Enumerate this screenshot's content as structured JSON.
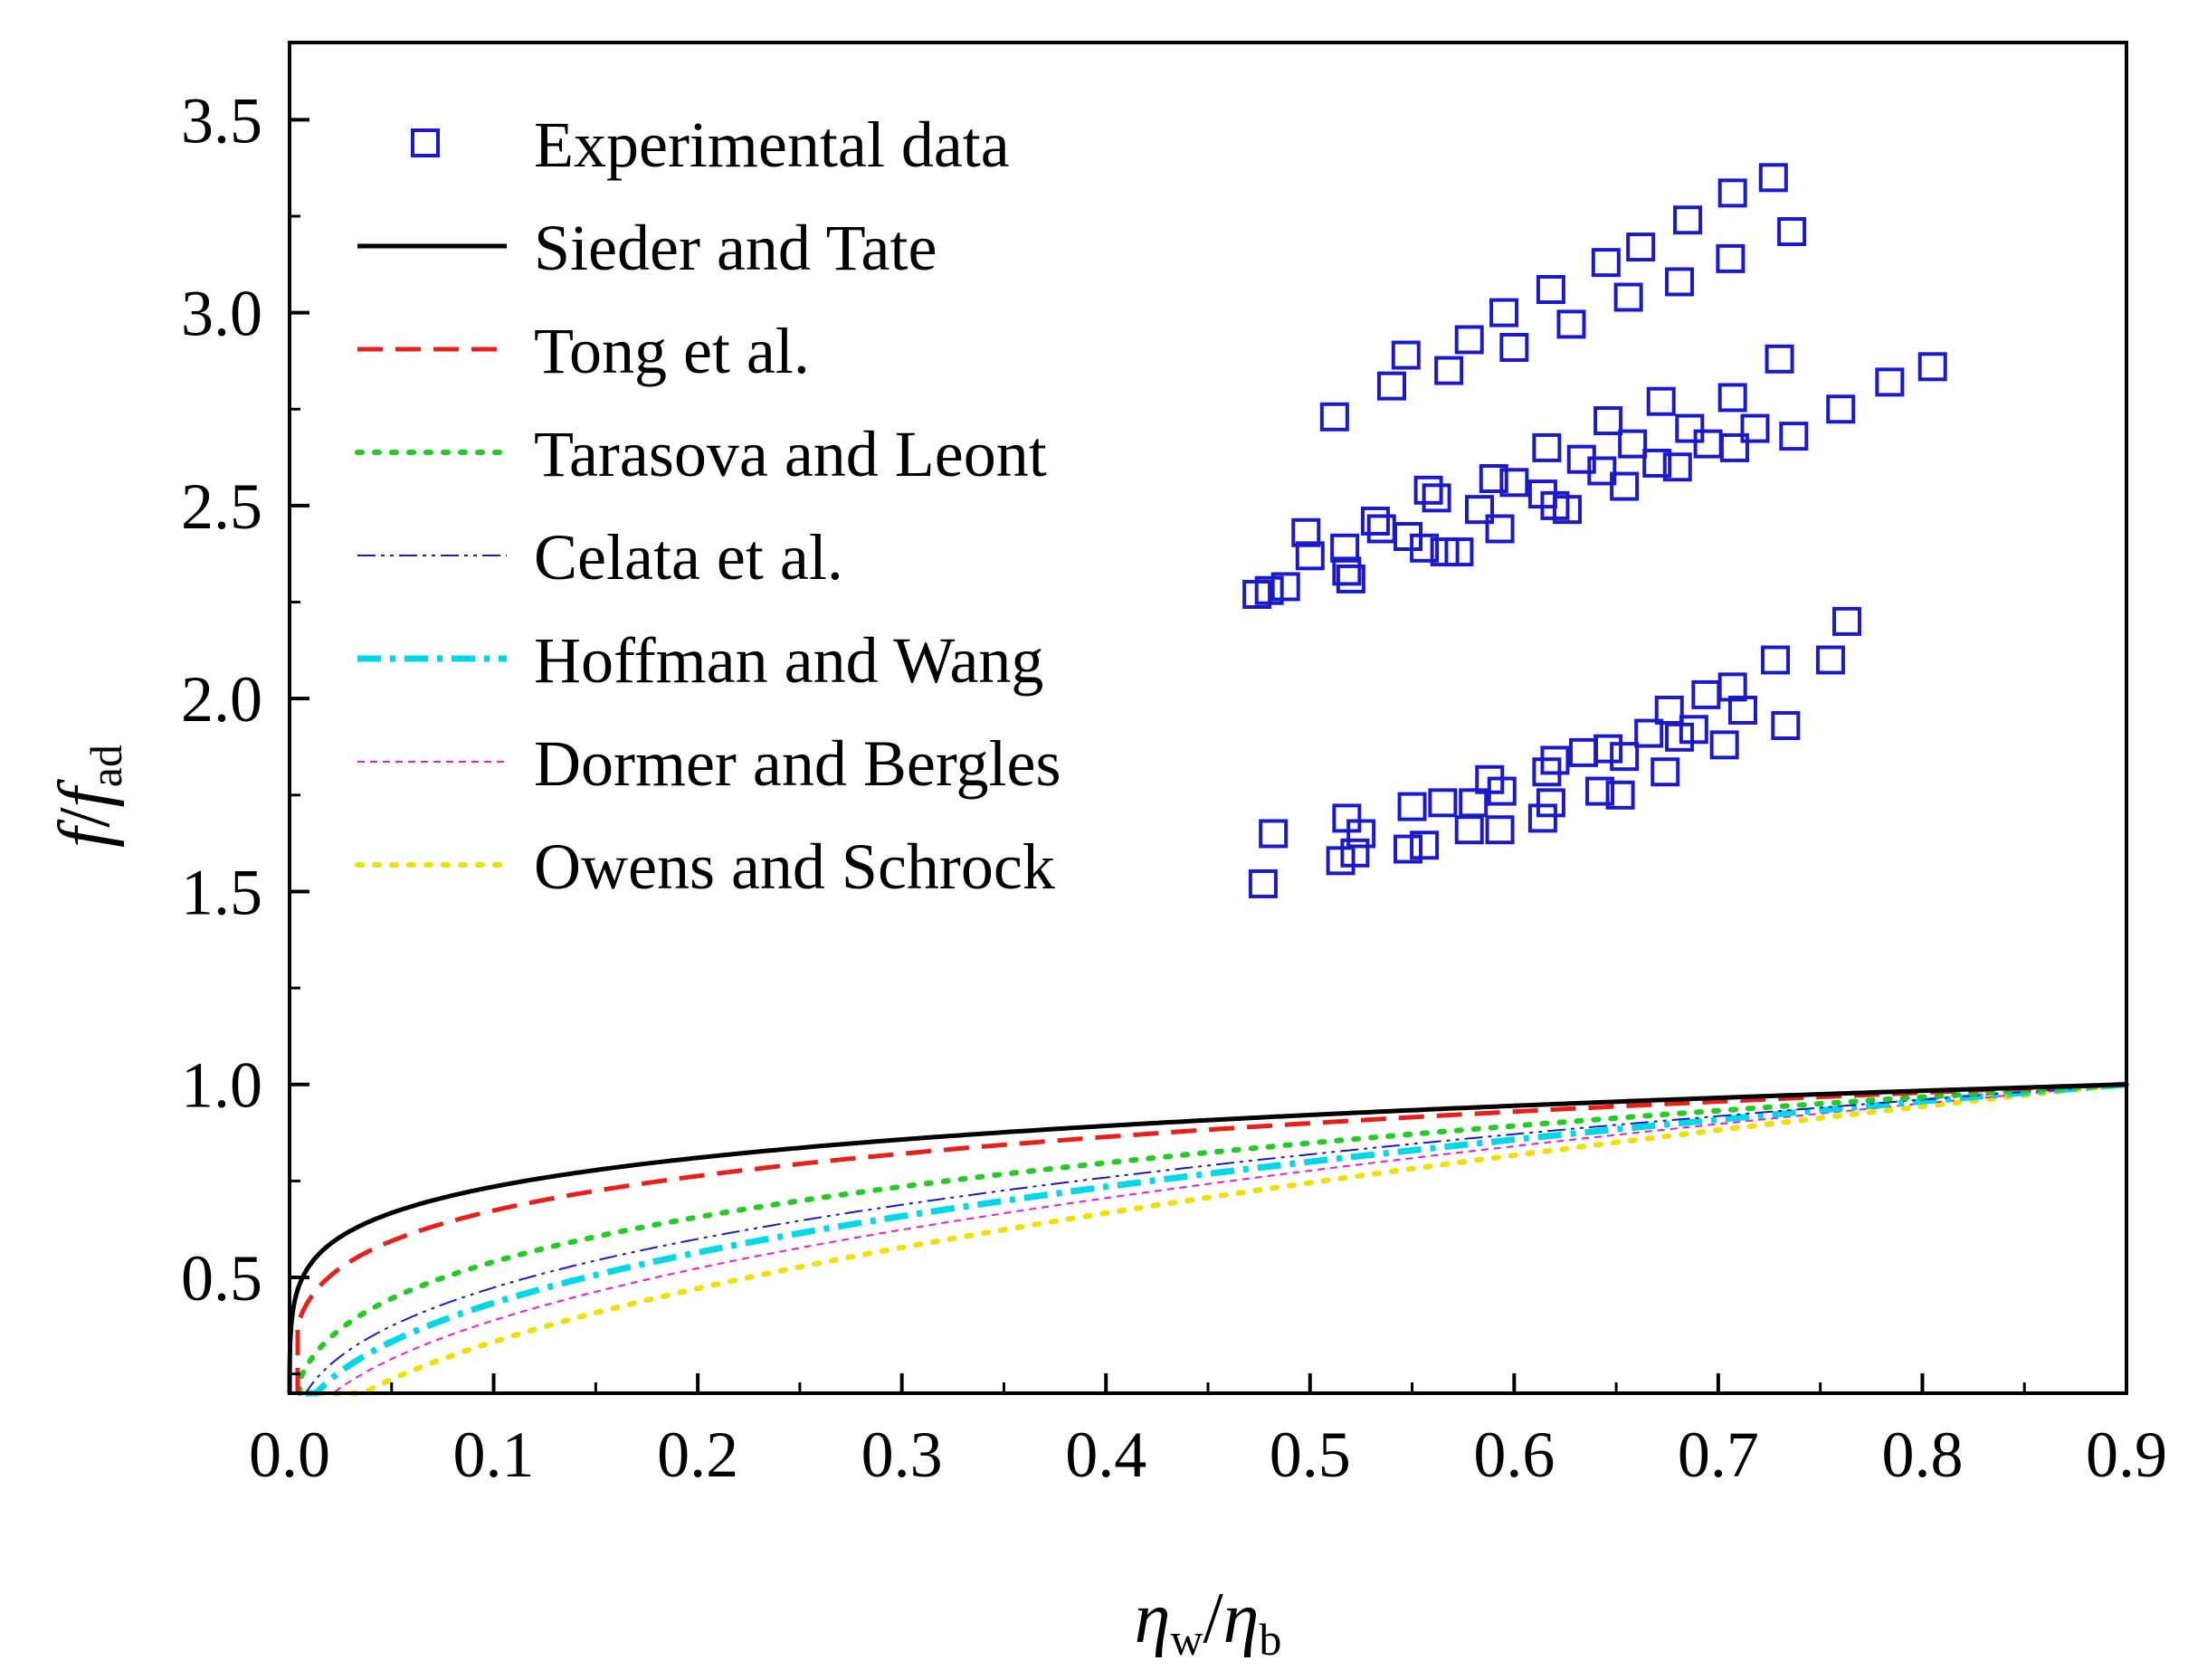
{
  "chart_data": {
    "type": "line",
    "title": "",
    "xlabel": {
      "main": "η",
      "sub1": "w",
      "sep": "/",
      "main2": "η",
      "sub2": "b"
    },
    "ylabel": {
      "main1": "f",
      "sep": "/",
      "main2": "f",
      "sub": "ad"
    },
    "xlim": [
      0.0,
      0.9
    ],
    "ylim": [
      0.2,
      3.7
    ],
    "xticks": [
      "0.0",
      "0.1",
      "0.2",
      "0.3",
      "0.4",
      "0.5",
      "0.6",
      "0.7",
      "0.8",
      "0.9"
    ],
    "yticks": [
      "0.5",
      "1.0",
      "1.5",
      "2.0",
      "2.5",
      "3.0",
      "3.5"
    ],
    "legend_position": "top-left",
    "series": [
      {
        "name": "Experimental data",
        "kind": "scatter",
        "color": "#1a1acc",
        "points": [
          [
            0.512,
            2.73
          ],
          [
            0.54,
            2.81
          ],
          [
            0.547,
            2.89
          ],
          [
            0.568,
            2.85
          ],
          [
            0.578,
            2.93
          ],
          [
            0.595,
            3.0
          ],
          [
            0.6,
            2.91
          ],
          [
            0.618,
            3.06
          ],
          [
            0.628,
            2.97
          ],
          [
            0.645,
            3.13
          ],
          [
            0.656,
            3.04
          ],
          [
            0.662,
            3.17
          ],
          [
            0.681,
            3.08
          ],
          [
            0.685,
            3.24
          ],
          [
            0.707,
            3.31
          ],
          [
            0.706,
            3.14
          ],
          [
            0.727,
            3.35
          ],
          [
            0.736,
            3.21
          ],
          [
            0.474,
            2.27
          ],
          [
            0.48,
            2.28
          ],
          [
            0.488,
            2.29
          ],
          [
            0.498,
            2.43
          ],
          [
            0.5,
            2.37
          ],
          [
            0.517,
            2.39
          ],
          [
            0.518,
            2.33
          ],
          [
            0.52,
            2.31
          ],
          [
            0.532,
            2.46
          ],
          [
            0.535,
            2.44
          ],
          [
            0.548,
            2.42
          ],
          [
            0.556,
            2.39
          ],
          [
            0.558,
            2.54
          ],
          [
            0.562,
            2.52
          ],
          [
            0.566,
            2.38
          ],
          [
            0.573,
            2.38
          ],
          [
            0.583,
            2.49
          ],
          [
            0.59,
            2.57
          ],
          [
            0.593,
            2.44
          ],
          [
            0.6,
            2.56
          ],
          [
            0.614,
            2.53
          ],
          [
            0.616,
            2.65
          ],
          [
            0.62,
            2.5
          ],
          [
            0.626,
            2.49
          ],
          [
            0.633,
            2.62
          ],
          [
            0.643,
            2.59
          ],
          [
            0.646,
            2.72
          ],
          [
            0.654,
            2.55
          ],
          [
            0.658,
            2.66
          ],
          [
            0.67,
            2.61
          ],
          [
            0.672,
            2.77
          ],
          [
            0.68,
            2.6
          ],
          [
            0.686,
            2.7
          ],
          [
            0.695,
            2.66
          ],
          [
            0.707,
            2.78
          ],
          [
            0.708,
            2.65
          ],
          [
            0.718,
            2.7
          ],
          [
            0.73,
            2.88
          ],
          [
            0.737,
            2.68
          ],
          [
            0.76,
            2.75
          ],
          [
            0.784,
            2.82
          ],
          [
            0.805,
            2.86
          ],
          [
            0.477,
            1.52
          ],
          [
            0.482,
            1.65
          ],
          [
            0.515,
            1.58
          ],
          [
            0.518,
            1.69
          ],
          [
            0.522,
            1.6
          ],
          [
            0.525,
            1.65
          ],
          [
            0.548,
            1.61
          ],
          [
            0.55,
            1.72
          ],
          [
            0.556,
            1.62
          ],
          [
            0.565,
            1.73
          ],
          [
            0.578,
            1.66
          ],
          [
            0.58,
            1.73
          ],
          [
            0.588,
            1.79
          ],
          [
            0.593,
            1.66
          ],
          [
            0.594,
            1.76
          ],
          [
            0.614,
            1.69
          ],
          [
            0.618,
            1.73
          ],
          [
            0.616,
            1.81
          ],
          [
            0.62,
            1.84
          ],
          [
            0.634,
            1.86
          ],
          [
            0.642,
            1.76
          ],
          [
            0.646,
            1.87
          ],
          [
            0.652,
            1.75
          ],
          [
            0.654,
            1.85
          ],
          [
            0.666,
            1.91
          ],
          [
            0.674,
            1.81
          ],
          [
            0.676,
            1.97
          ],
          [
            0.681,
            1.9
          ],
          [
            0.688,
            1.92
          ],
          [
            0.694,
            2.01
          ],
          [
            0.703,
            1.88
          ],
          [
            0.707,
            2.03
          ],
          [
            0.712,
            1.97
          ],
          [
            0.733,
            1.93
          ],
          [
            0.728,
            2.1
          ],
          [
            0.755,
            2.1
          ],
          [
            0.763,
            2.2
          ]
        ]
      },
      {
        "name": "Sieder and Tate",
        "kind": "line",
        "color": "#000000",
        "exponent": 0.14,
        "x0": 0.0,
        "scale": 0.9,
        "style": "solid"
      },
      {
        "name": "Tong et al.",
        "kind": "line",
        "color": "#e8201a",
        "exponent": 0.18,
        "x0": 0.004,
        "scale": 0.9,
        "style": "dash"
      },
      {
        "name": "Tarasova and Leont",
        "kind": "line",
        "color": "#22cc22",
        "exponent": 0.28,
        "x0": 0.005,
        "scale": 0.9,
        "style": "dot"
      },
      {
        "name": "Celata et al.",
        "kind": "line",
        "color": "#1a1acc",
        "exponent": 0.34,
        "x0": 0.006,
        "scale": 0.9,
        "style": "dashdotdot"
      },
      {
        "name": "Hoffman and Wang",
        "kind": "line",
        "color": "#00d8e8",
        "exponent": 0.38,
        "x0": 0.008,
        "scale": 0.9,
        "style": "dashdot"
      },
      {
        "name": "Dormer and Bergles",
        "kind": "line",
        "color": "#e81ad8",
        "exponent": 0.43,
        "x0": 0.01,
        "scale": 0.9,
        "style": "shortdash"
      },
      {
        "name": "Owens and Schrock",
        "kind": "line",
        "color": "#f0e000",
        "exponent": 0.5,
        "x0": 0.014,
        "scale": 0.9,
        "style": "dot"
      }
    ]
  }
}
